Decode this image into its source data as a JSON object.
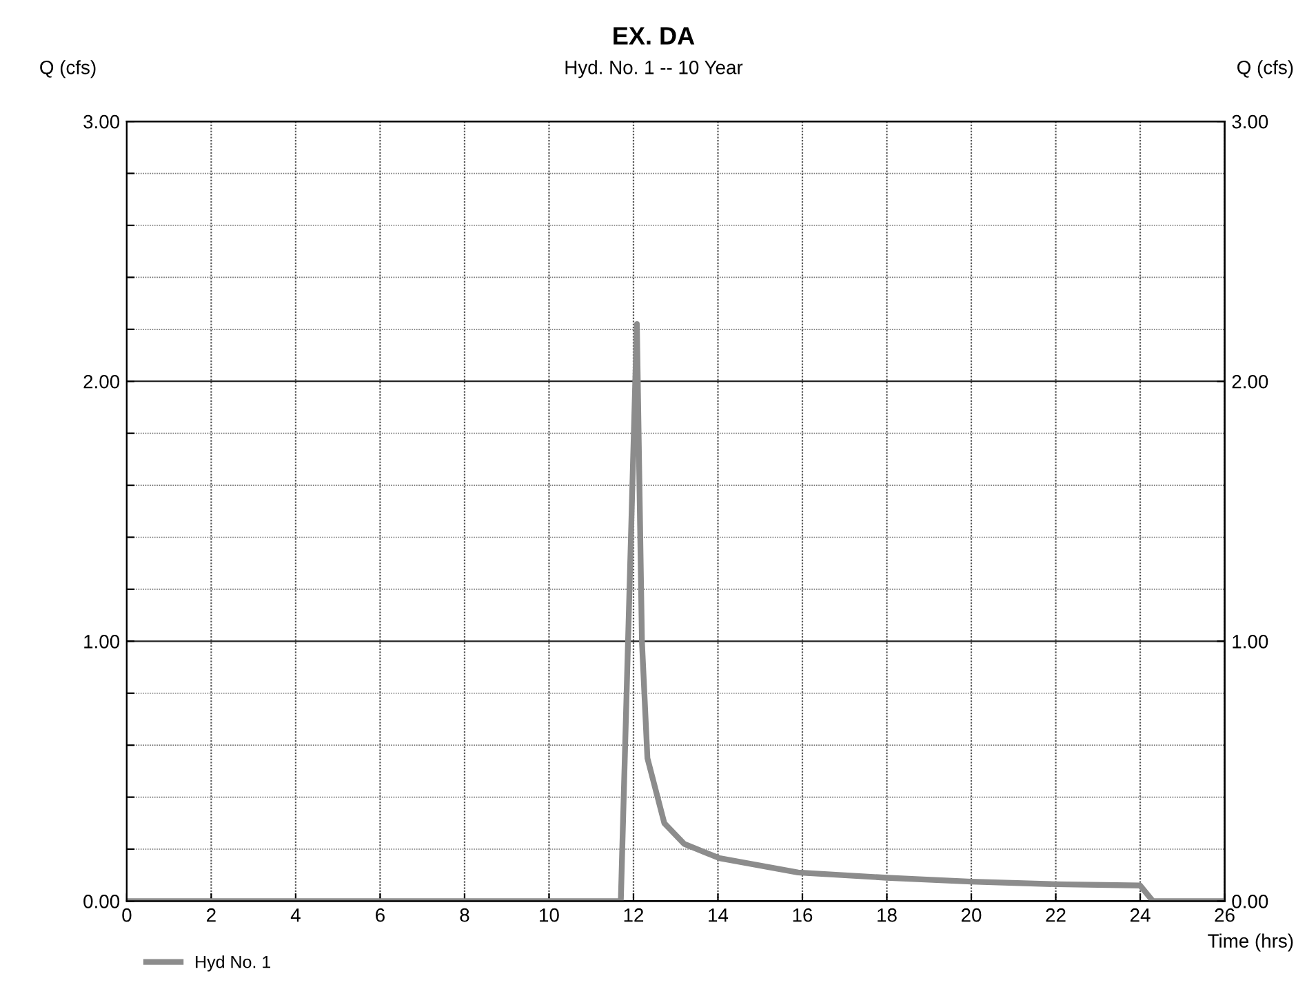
{
  "chart_data": {
    "type": "line",
    "title": "EX. DA",
    "subtitle": "Hyd. No. 1 -- 10 Year",
    "xlabel": "Time (hrs)",
    "ylabel": "Q (cfs)",
    "y2label": "Q (cfs)",
    "series": [
      {
        "name": "Hyd No. 1",
        "color": "#8c8c8c",
        "x": [
          0,
          11.7,
          12.08,
          12.2,
          12.33,
          12.73,
          13.2,
          14.04,
          15.9,
          18,
          20,
          22,
          24,
          24.3,
          26
        ],
        "values": [
          0,
          0,
          2.22,
          1.0,
          0.55,
          0.3,
          0.22,
          0.165,
          0.11,
          0.09,
          0.075,
          0.065,
          0.06,
          0,
          0
        ]
      }
    ],
    "xlim": [
      0,
      26
    ],
    "xticks": [
      0,
      2,
      4,
      6,
      8,
      10,
      12,
      14,
      16,
      18,
      20,
      22,
      24,
      26
    ],
    "ylim": [
      0,
      3
    ],
    "yticks": [
      {
        "value": 0,
        "label": "0.00"
      },
      {
        "value": 0.2,
        "label": null
      },
      {
        "value": 0.4,
        "label": null
      },
      {
        "value": 0.6,
        "label": null
      },
      {
        "value": 0.8,
        "label": null
      },
      {
        "value": 1,
        "label": "1.00"
      },
      {
        "value": 1.2,
        "label": null
      },
      {
        "value": 1.4,
        "label": null
      },
      {
        "value": 1.6,
        "label": null
      },
      {
        "value": 1.8,
        "label": null
      },
      {
        "value": 2,
        "label": "2.00"
      },
      {
        "value": 2.2,
        "label": null
      },
      {
        "value": 2.4,
        "label": null
      },
      {
        "value": 2.6,
        "label": null
      },
      {
        "value": 2.8,
        "label": null
      },
      {
        "value": 3,
        "label": "3.00"
      }
    ],
    "y2lim": [
      0,
      3
    ],
    "y2ticks": [
      {
        "value": 0,
        "label": "0.00"
      },
      {
        "value": 1,
        "label": "1.00"
      },
      {
        "value": 2,
        "label": "2.00"
      },
      {
        "value": 3,
        "label": "3.00"
      }
    ],
    "grid": true,
    "legend": "bottom left",
    "marker": "none",
    "line_style": "solid"
  }
}
